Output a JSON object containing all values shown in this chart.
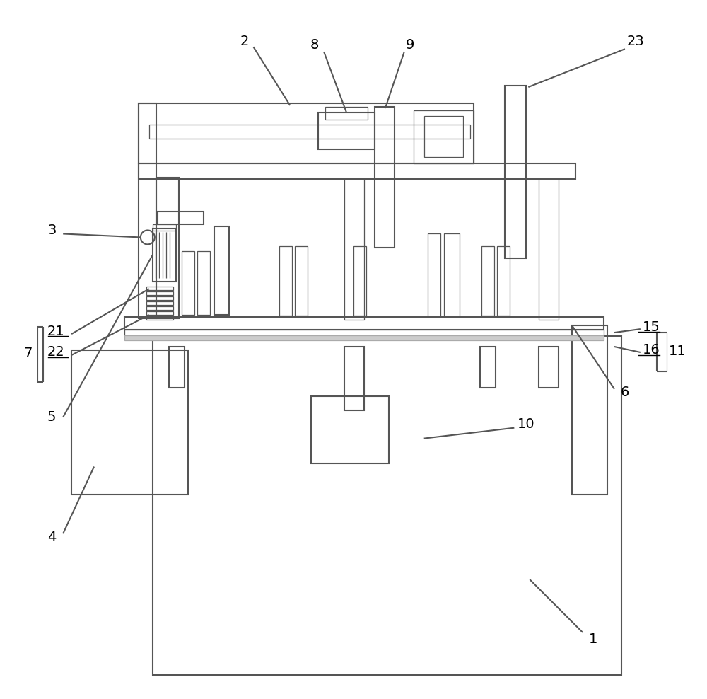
{
  "bg": "#ffffff",
  "lc": "#555555",
  "lw": 1.5,
  "tlw": 0.9
}
